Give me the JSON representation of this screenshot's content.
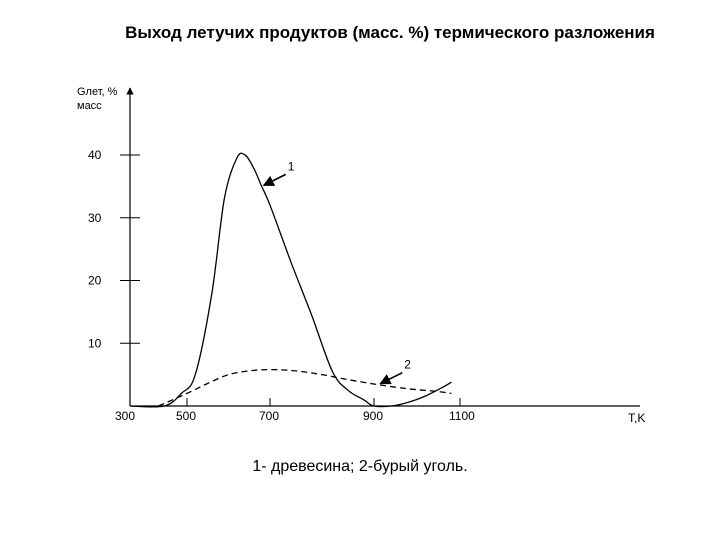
{
  "chart_data": {
    "type": "line",
    "title": "Выход летучих продуктов (масс. %) термического разложения",
    "ylabel_line1": "Gлет, %",
    "ylabel_line2": "масс",
    "xlabel": "T,K",
    "y_ticks": [
      10,
      20,
      30,
      40
    ],
    "x_ticks": [
      300,
      500,
      700,
      900,
      1100
    ],
    "xlim": [
      300,
      1500
    ],
    "ylim": [
      0,
      47
    ],
    "legend_caption": "1- древесина; 2-бурый уголь.",
    "series": [
      {
        "name": "1",
        "style": "solid",
        "x": [
          300,
          420,
          480,
          520,
          560,
          590,
          620,
          640,
          660,
          680,
          700,
          740,
          780,
          820,
          850,
          880,
          900,
          940,
          980,
          1020,
          1060,
          1080
        ],
        "y": [
          0,
          0,
          2,
          5,
          18,
          33,
          39.5,
          40,
          38,
          35,
          32,
          23,
          14.5,
          5.5,
          2.5,
          1,
          0,
          0,
          0.6,
          1.6,
          3,
          3.8
        ]
      },
      {
        "name": "2",
        "style": "dashed",
        "x": [
          400,
          500,
          550,
          600,
          650,
          700,
          750,
          800,
          850,
          900,
          950,
          1000,
          1050,
          1080
        ],
        "y": [
          0,
          2,
          3.6,
          5,
          5.6,
          5.8,
          5.6,
          5,
          4.2,
          3.5,
          3,
          2.6,
          2.3,
          2
        ]
      }
    ],
    "annotations": [
      {
        "label": "1",
        "series": "1",
        "x": 680,
        "y": 35
      },
      {
        "label": "2",
        "series": "2",
        "x": 910,
        "y": 3.4
      }
    ]
  },
  "colors": {
    "background": "#ffffff",
    "line": "#000000"
  }
}
